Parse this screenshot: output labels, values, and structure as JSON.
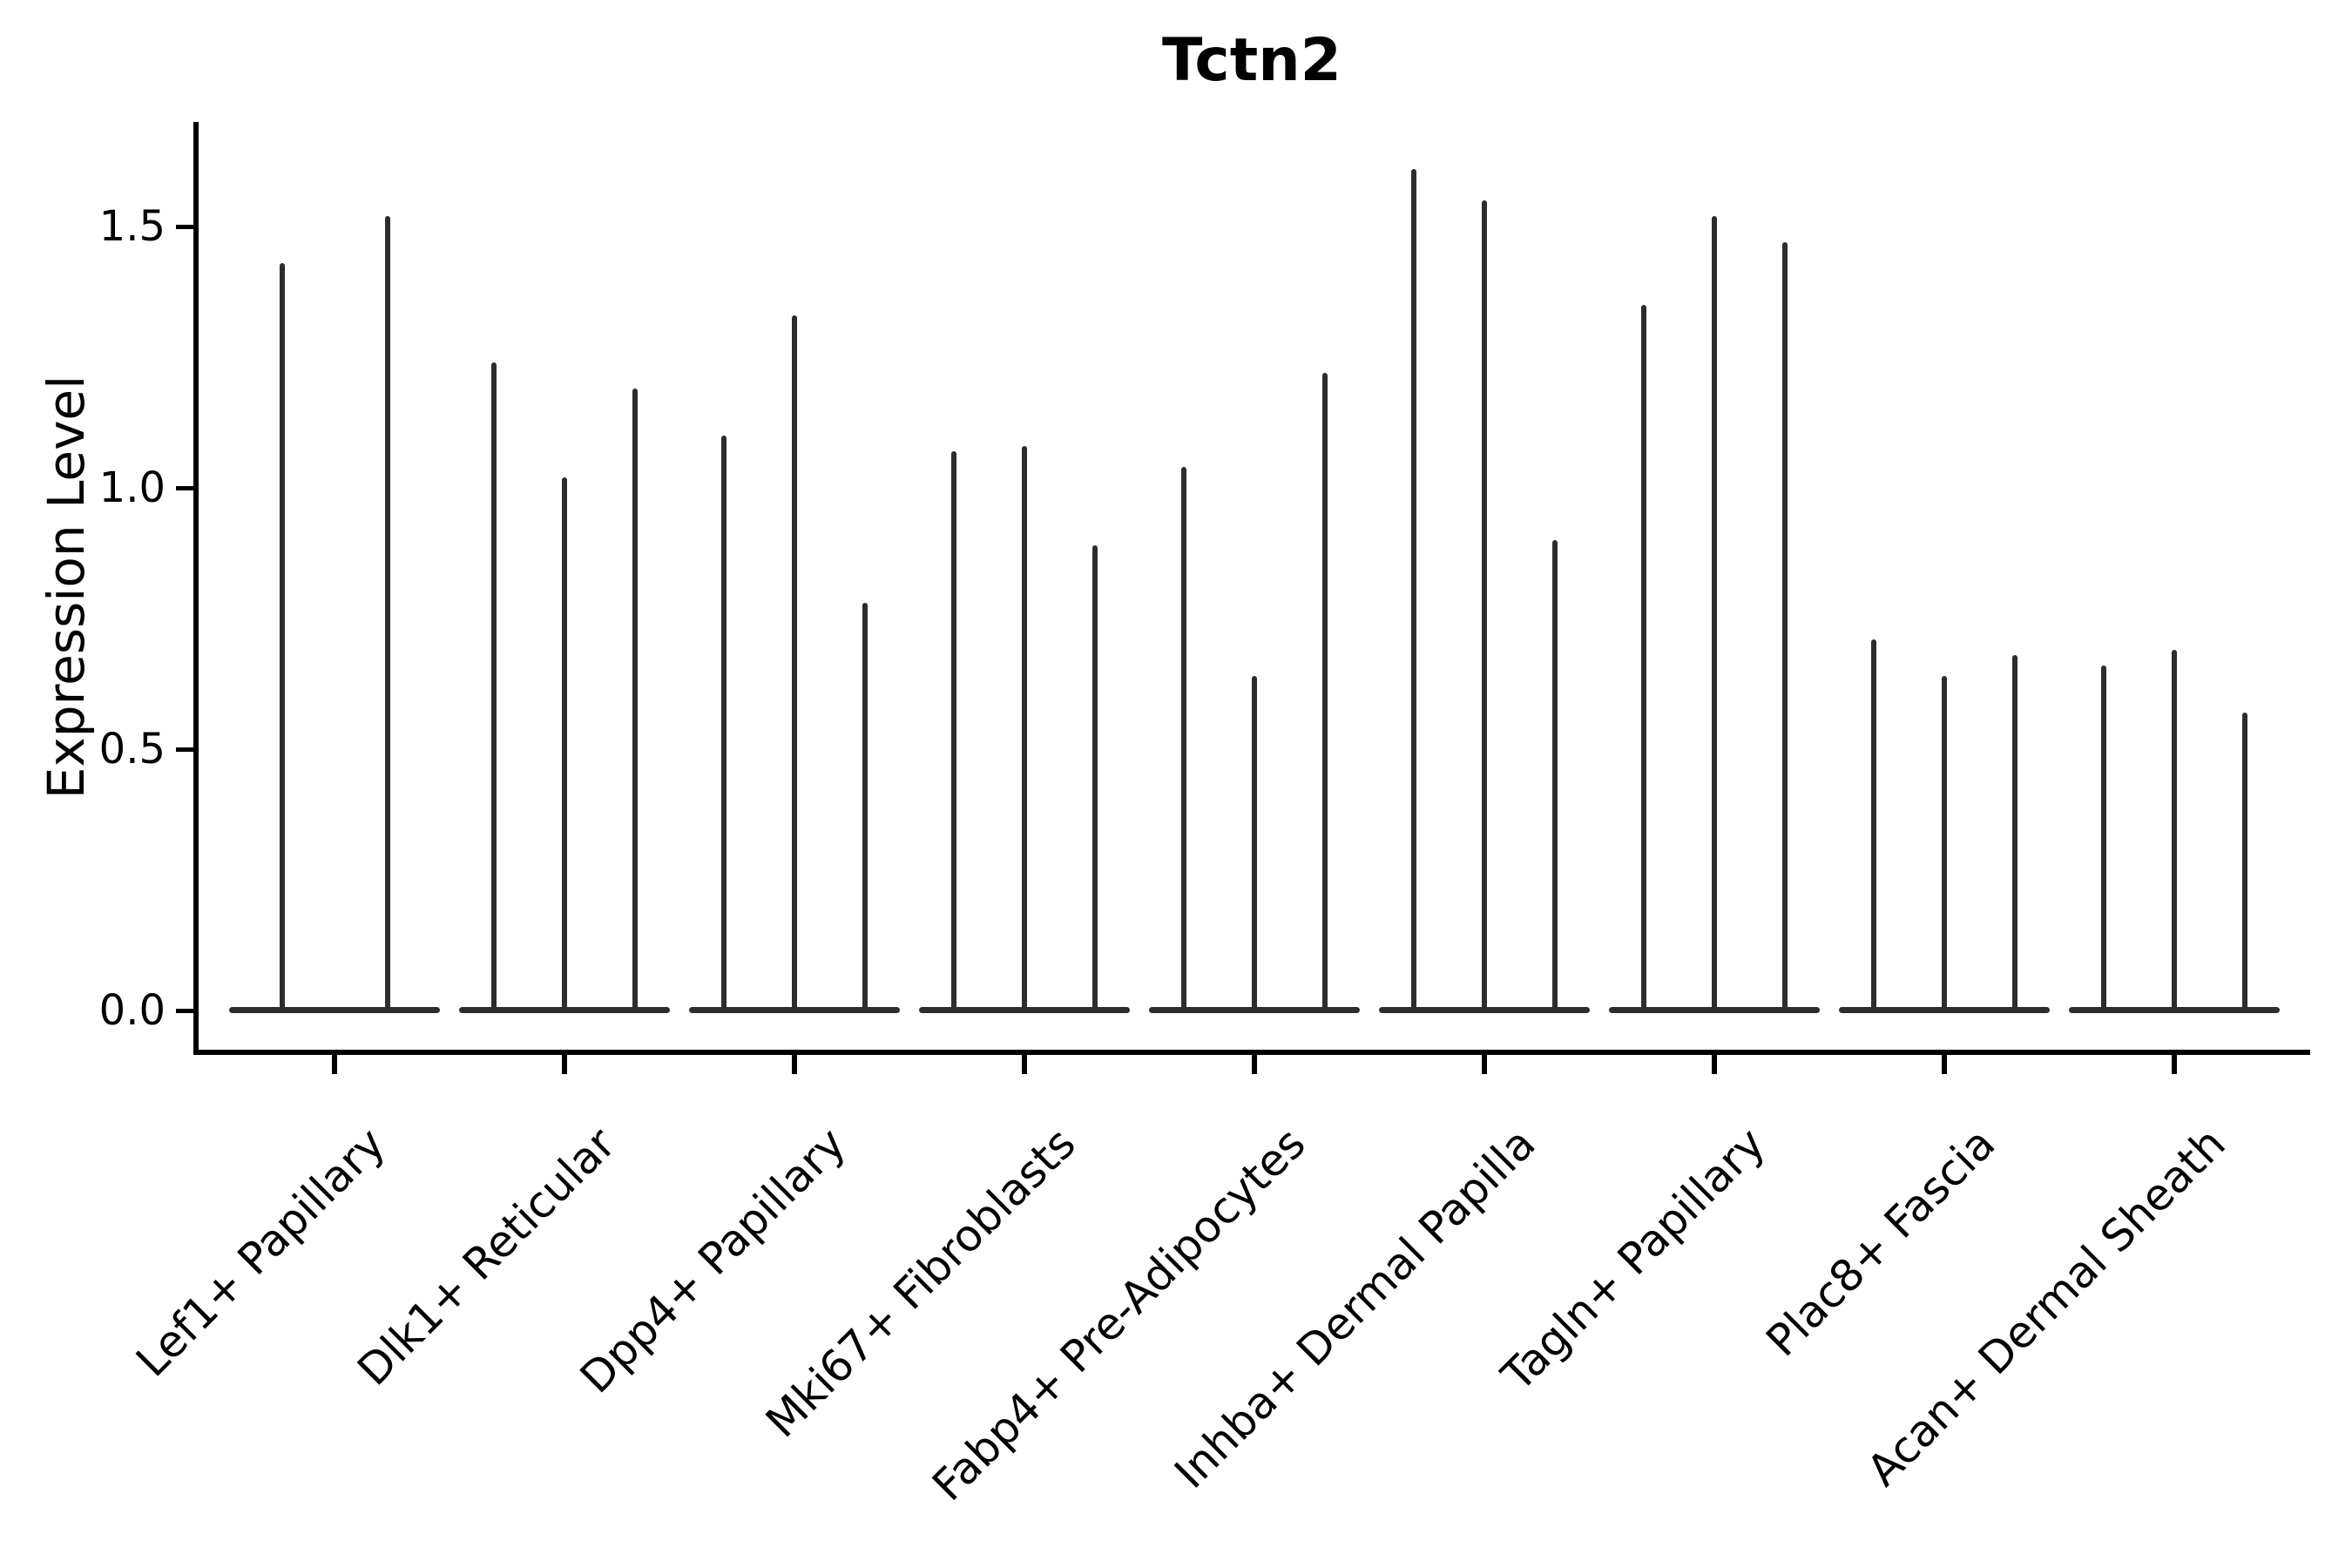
{
  "figure": {
    "title": "Tctn2",
    "background_color": "#ffffff"
  },
  "chart_data": {
    "type": "violin",
    "title": "Tctn2",
    "xlabel": "",
    "ylabel": "Expression Level",
    "ylim": [
      -0.08,
      1.7
    ],
    "yticks": [
      {
        "value": 0.0,
        "label": "0.0"
      },
      {
        "value": 0.5,
        "label": "0.5"
      },
      {
        "value": 1.0,
        "label": "1.0"
      },
      {
        "value": 1.5,
        "label": "1.5"
      }
    ],
    "grid": false,
    "legend": "none",
    "description": "Seurat-style violin plot of Tctn2 expression. Each cell-type category contains 2-3 extremely thin needle-like violins: nearly all density sits at expression 0 (flat blob on the baseline) with a thin spike reaching the maximum expression value listed in violin_peaks.",
    "categories": [
      "Lef1+ Papillary",
      "Dlk1+ Reticular",
      "Dpp4+ Papillary",
      "Mki67+ Fibroblasts",
      "Fabp4+ Pre-Adipocytes",
      "Inhba+ Dermal Papilla",
      "Tagln+ Papillary",
      "Plac8+ Fascia",
      "Acan+ Dermal Sheath"
    ],
    "groups": [
      {
        "category": "Lef1+ Papillary",
        "violin_peaks": [
          1.43,
          1.52
        ]
      },
      {
        "category": "Dlk1+ Reticular",
        "violin_peaks": [
          1.24,
          1.02,
          1.19
        ]
      },
      {
        "category": "Dpp4+ Papillary",
        "violin_peaks": [
          1.1,
          1.33,
          0.78
        ]
      },
      {
        "category": "Mki67+ Fibroblasts",
        "violin_peaks": [
          1.07,
          1.08,
          0.89
        ]
      },
      {
        "category": "Fabp4+ Pre-Adipocytes",
        "violin_peaks": [
          1.04,
          0.64,
          1.22
        ]
      },
      {
        "category": "Inhba+ Dermal Papilla",
        "violin_peaks": [
          1.61,
          1.55,
          0.9
        ]
      },
      {
        "category": "Tagln+ Papillary",
        "violin_peaks": [
          1.35,
          1.52,
          1.47
        ]
      },
      {
        "category": "Plac8+ Fascia",
        "violin_peaks": [
          0.71,
          0.64,
          0.68
        ]
      },
      {
        "category": "Acan+ Dermal Sheath",
        "violin_peaks": [
          0.66,
          0.69,
          0.57
        ]
      }
    ],
    "baseline_mass_at_zero": true,
    "colors": {
      "violin": "#2d2d2d",
      "axis": "#000000",
      "text": "#000000"
    }
  }
}
